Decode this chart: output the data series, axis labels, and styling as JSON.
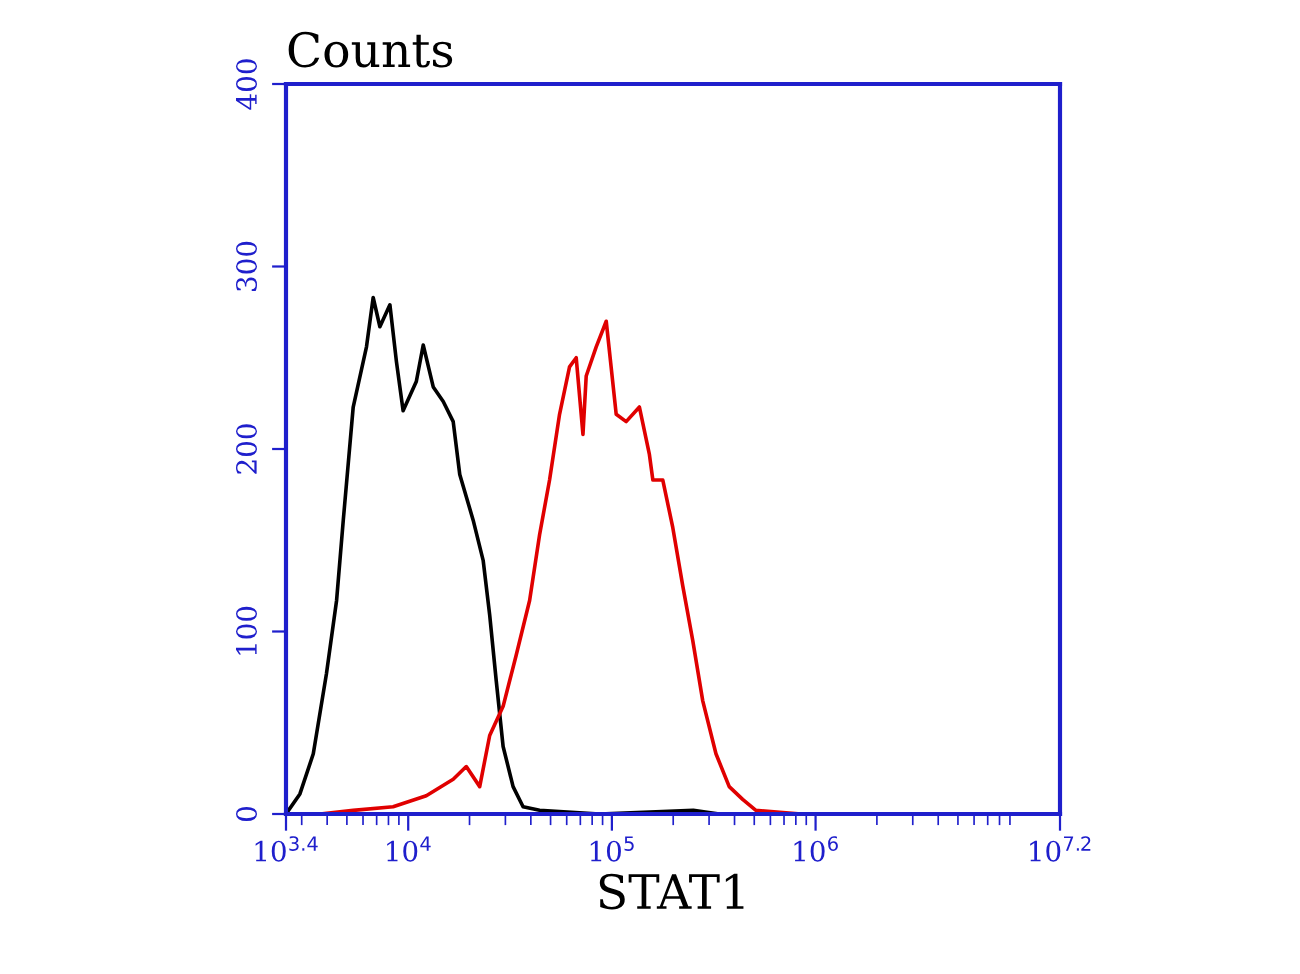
{
  "chart_data": {
    "type": "line",
    "ylabel": "Counts",
    "xlabel": "STAT1",
    "log": "x",
    "grid": false,
    "legend": false,
    "marker": "none",
    "line_style": "solid",
    "xlim": [
      2512,
      15848932
    ],
    "ylim": [
      0,
      400
    ],
    "yticks": [
      0,
      100,
      200,
      300,
      400
    ],
    "xticks": [
      {
        "value": 2512,
        "label": "10$^{3.4}$"
      },
      {
        "value": 10000,
        "label": "10$^{4}$"
      },
      {
        "value": 100000,
        "label": "10$^{5}$"
      },
      {
        "value": 1000000,
        "label": "10$^{6}$"
      },
      {
        "value": 15848932,
        "label": "10$^{7.2}$"
      }
    ],
    "series": [
      {
        "color": "#000000",
        "x": [
          2512,
          2940,
          3420,
          3970,
          4450,
          4800,
          5370,
          6240,
          6730,
          7260,
          8130,
          8750,
          9440,
          10960,
          11850,
          13270,
          14860,
          16630,
          17910,
          20840,
          23330,
          25120,
          27050,
          29240,
          32730,
          36640,
          44160,
          86900,
          251000,
          336500
        ],
        "values": [
          0,
          11,
          33,
          77,
          117,
          161,
          223,
          256,
          283,
          267,
          279,
          248,
          221,
          237,
          257,
          234,
          226,
          215,
          186,
          161,
          139,
          109,
          73,
          37,
          15,
          4,
          2,
          0,
          2,
          0
        ]
      },
      {
        "color": "#e00000",
        "x": [
          3690,
          5370,
          8430,
          12270,
          16630,
          19280,
          22440,
          25120,
          29240,
          33890,
          39450,
          44160,
          49430,
          55340,
          61950,
          66800,
          72100,
          74800,
          83750,
          93800,
          105000,
          117500,
          136500,
          152800,
          158900,
          177800,
          199000,
          222800,
          249500,
          279300,
          324300,
          376700,
          438500,
          509300,
          831800
        ],
        "values": [
          0,
          2,
          4,
          10,
          19,
          26,
          15,
          43,
          59,
          87,
          117,
          153,
          183,
          219,
          245,
          250,
          208,
          240,
          256,
          270,
          219,
          215,
          223,
          197,
          183,
          183,
          157,
          125,
          95,
          62,
          33,
          15,
          8,
          2,
          0
        ]
      }
    ]
  }
}
